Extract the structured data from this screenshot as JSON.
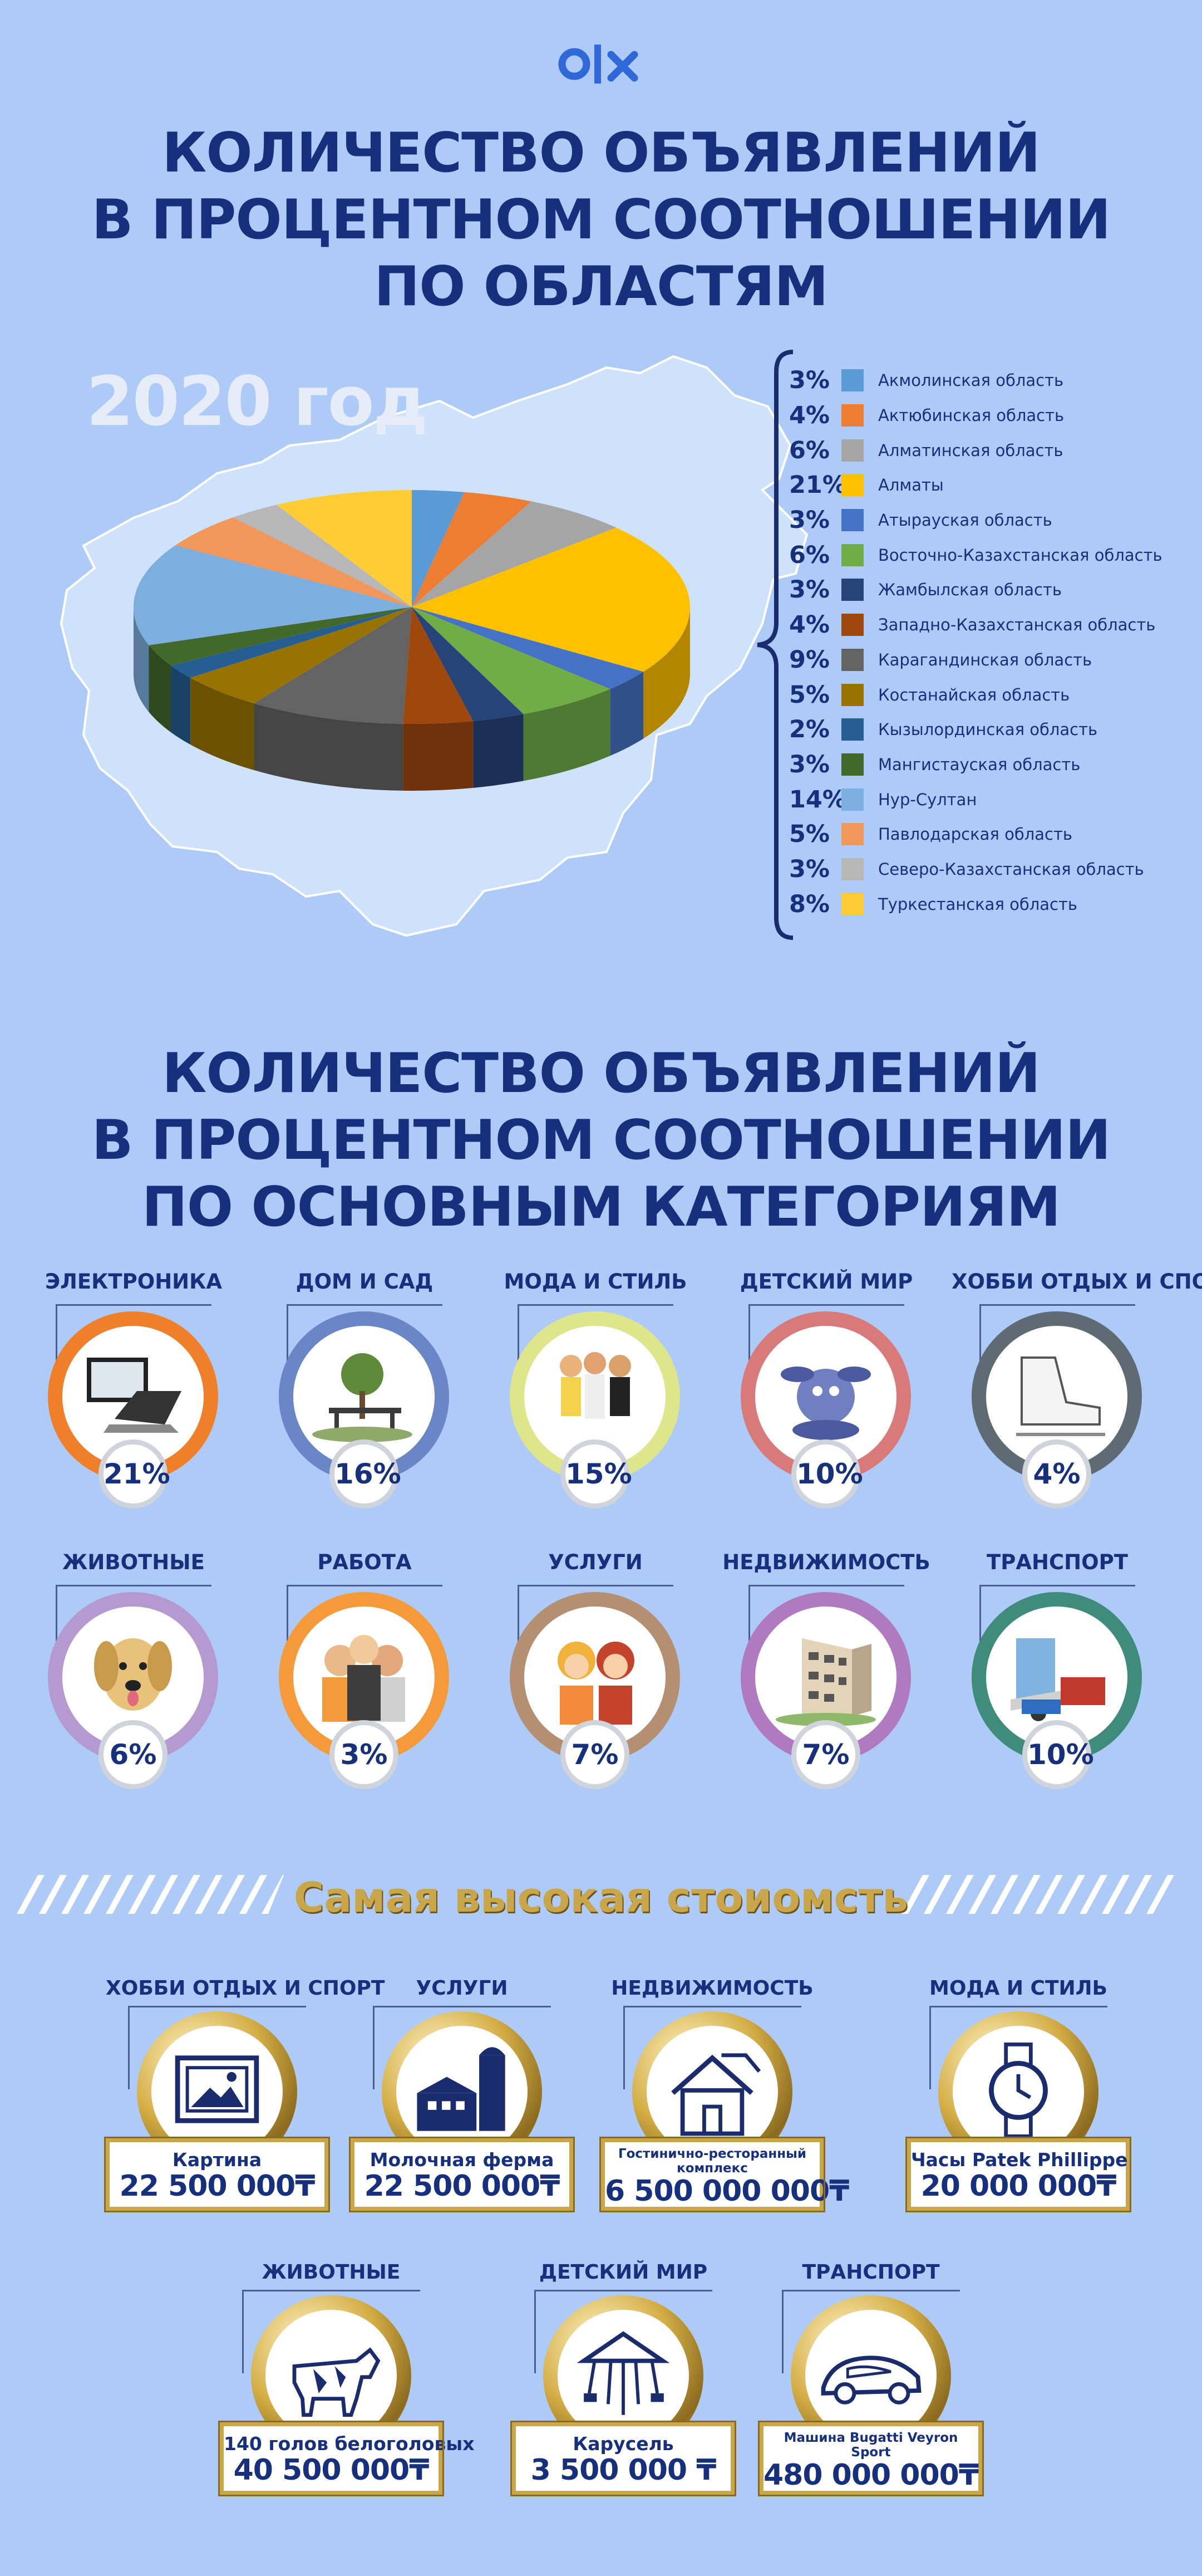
{
  "title1": [
    "КОЛИЧЕСТВО ОБЪЯВЛЕНИЙ",
    "В ПРОЦЕНТНОМ СООТНОШЕНИИ",
    "ПО ОБЛАСТЯМ"
  ],
  "year": "2020 год",
  "chart_data": {
    "type": "pie",
    "title": "",
    "categories": [
      "Акмолинская область",
      "Актюбинская область",
      "Алматинская область",
      "Алматы",
      "Атырауская область",
      "Восточно-Казахстанская область",
      "Жамбылская область",
      "Западно-Казахстанская область",
      "Карагандинская область",
      "Костанайская область",
      "Кызылординская область",
      "Мангистауская область",
      "Нур-Султан",
      "Павлодарская область",
      "Северо-Казахстанская область",
      "Туркестанская область"
    ],
    "values": [
      3,
      4,
      6,
      21,
      3,
      6,
      3,
      4,
      9,
      5,
      2,
      3,
      14,
      5,
      3,
      8
    ],
    "labels": [
      "3%",
      "4%",
      "6%",
      "21%",
      "3%",
      "6%",
      "3%",
      "4%",
      "9%",
      "5%",
      "2%",
      "3%",
      "14%",
      "5%",
      "3%",
      "8%"
    ],
    "colors": [
      "#5b9bd5",
      "#ed7d31",
      "#a5a5a5",
      "#ffc000",
      "#4472c4",
      "#70ad47",
      "#264478",
      "#9e480e",
      "#636363",
      "#997300",
      "#255e91",
      "#43682b",
      "#7cafdd",
      "#f1975a",
      "#b7b7b7",
      "#ffcd33"
    ],
    "legend": "right"
  },
  "title2": [
    "КОЛИЧЕСТВО ОБЪЯВЛЕНИЙ",
    "В ПРОЦЕНТНОМ СООТНОШЕНИИ",
    "ПО ОСНОВНЫМ КАТЕГОРИЯМ"
  ],
  "categories": [
    {
      "name": "ЭЛЕКТРОНИКА",
      "pct": "21%",
      "color": "#f07f2c",
      "icon": "laptop-icon"
    },
    {
      "name": "ДОМ И САД",
      "pct": "16%",
      "color": "#6a86c7",
      "icon": "garden-icon"
    },
    {
      "name": "МОДА И СТИЛЬ",
      "pct": "15%",
      "color": "#dfe58a",
      "icon": "fashion-icon"
    },
    {
      "name": "ДЕТСКИЙ МИР",
      "pct": "10%",
      "color": "#d87a7a",
      "icon": "toy-icon"
    },
    {
      "name": "ХОББИ ОТДЫХ И СПОРТ",
      "pct": "4%",
      "color": "#5f6b73",
      "icon": "skate-icon"
    },
    {
      "name": "ЖИВОТНЫЕ",
      "pct": "6%",
      "color": "#b49ad0",
      "icon": "dog-icon"
    },
    {
      "name": "РАБОТА",
      "pct": "3%",
      "color": "#f49a3b",
      "icon": "people-icon"
    },
    {
      "name": "УСЛУГИ",
      "pct": "7%",
      "color": "#b58f72",
      "icon": "services-icon"
    },
    {
      "name": "НЕДВИЖИМОСТЬ",
      "pct": "7%",
      "color": "#b07ac0",
      "icon": "building-icon"
    },
    {
      "name": "ТРАНСПОРТ",
      "pct": "10%",
      "color": "#3f8c7c",
      "icon": "transport-icon"
    }
  ],
  "max_title": "Самая высокая стоиомсть",
  "prices": [
    {
      "cat": "ХОББИ ОТДЫХ И СПОРТ",
      "item": "Картина",
      "price": "22 500 000₸",
      "icon": "painting-icon"
    },
    {
      "cat": "УСЛУГИ",
      "item": "Молочная ферма",
      "price": "22 500 000₸",
      "icon": "farm-icon"
    },
    {
      "cat": "НЕДВИЖИМОСТЬ",
      "item": "Гостинично-ресторанный комплекс",
      "price": "6 500 000 000₸",
      "icon": "house-icon"
    },
    {
      "cat": "МОДА И СТИЛЬ",
      "item": "Часы Patek Phillippe",
      "price": "20 000 000₸",
      "icon": "watch-icon"
    },
    {
      "cat": "ЖИВОТНЫЕ",
      "item": "140 голов белоголовых",
      "price": "40 500 000₸",
      "icon": "cow-icon"
    },
    {
      "cat": "ДЕТСКИЙ МИР",
      "item": "Карусель",
      "price": "3 500 000 ₸",
      "icon": "carousel-icon"
    },
    {
      "cat": "ТРАНСПОРТ",
      "item": "Машина Bugatti Veyron Sport",
      "price": "480 000 000₸",
      "icon": "car-icon"
    }
  ]
}
